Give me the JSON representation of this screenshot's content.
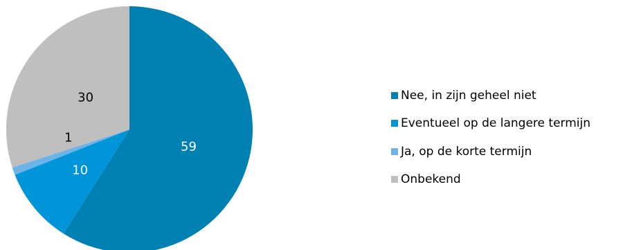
{
  "chart_data": {
    "type": "pie",
    "categories": [
      "Nee, in zijn geheel niet",
      "Eventueel op de langere termijn",
      "Ja, op de korte termijn",
      "Onbekend"
    ],
    "values": [
      59,
      10,
      1,
      30
    ],
    "data_labels": [
      "59",
      "10",
      "1",
      "30"
    ],
    "colors": [
      "#0081B2",
      "#0095D8",
      "#6CB4E8",
      "#BFBFBF"
    ],
    "label_colors": [
      "#ffffff",
      "#ffffff",
      "#000000",
      "#000000"
    ],
    "start_angle_deg": 0,
    "direction": "clockwise",
    "legend_position": "right"
  }
}
